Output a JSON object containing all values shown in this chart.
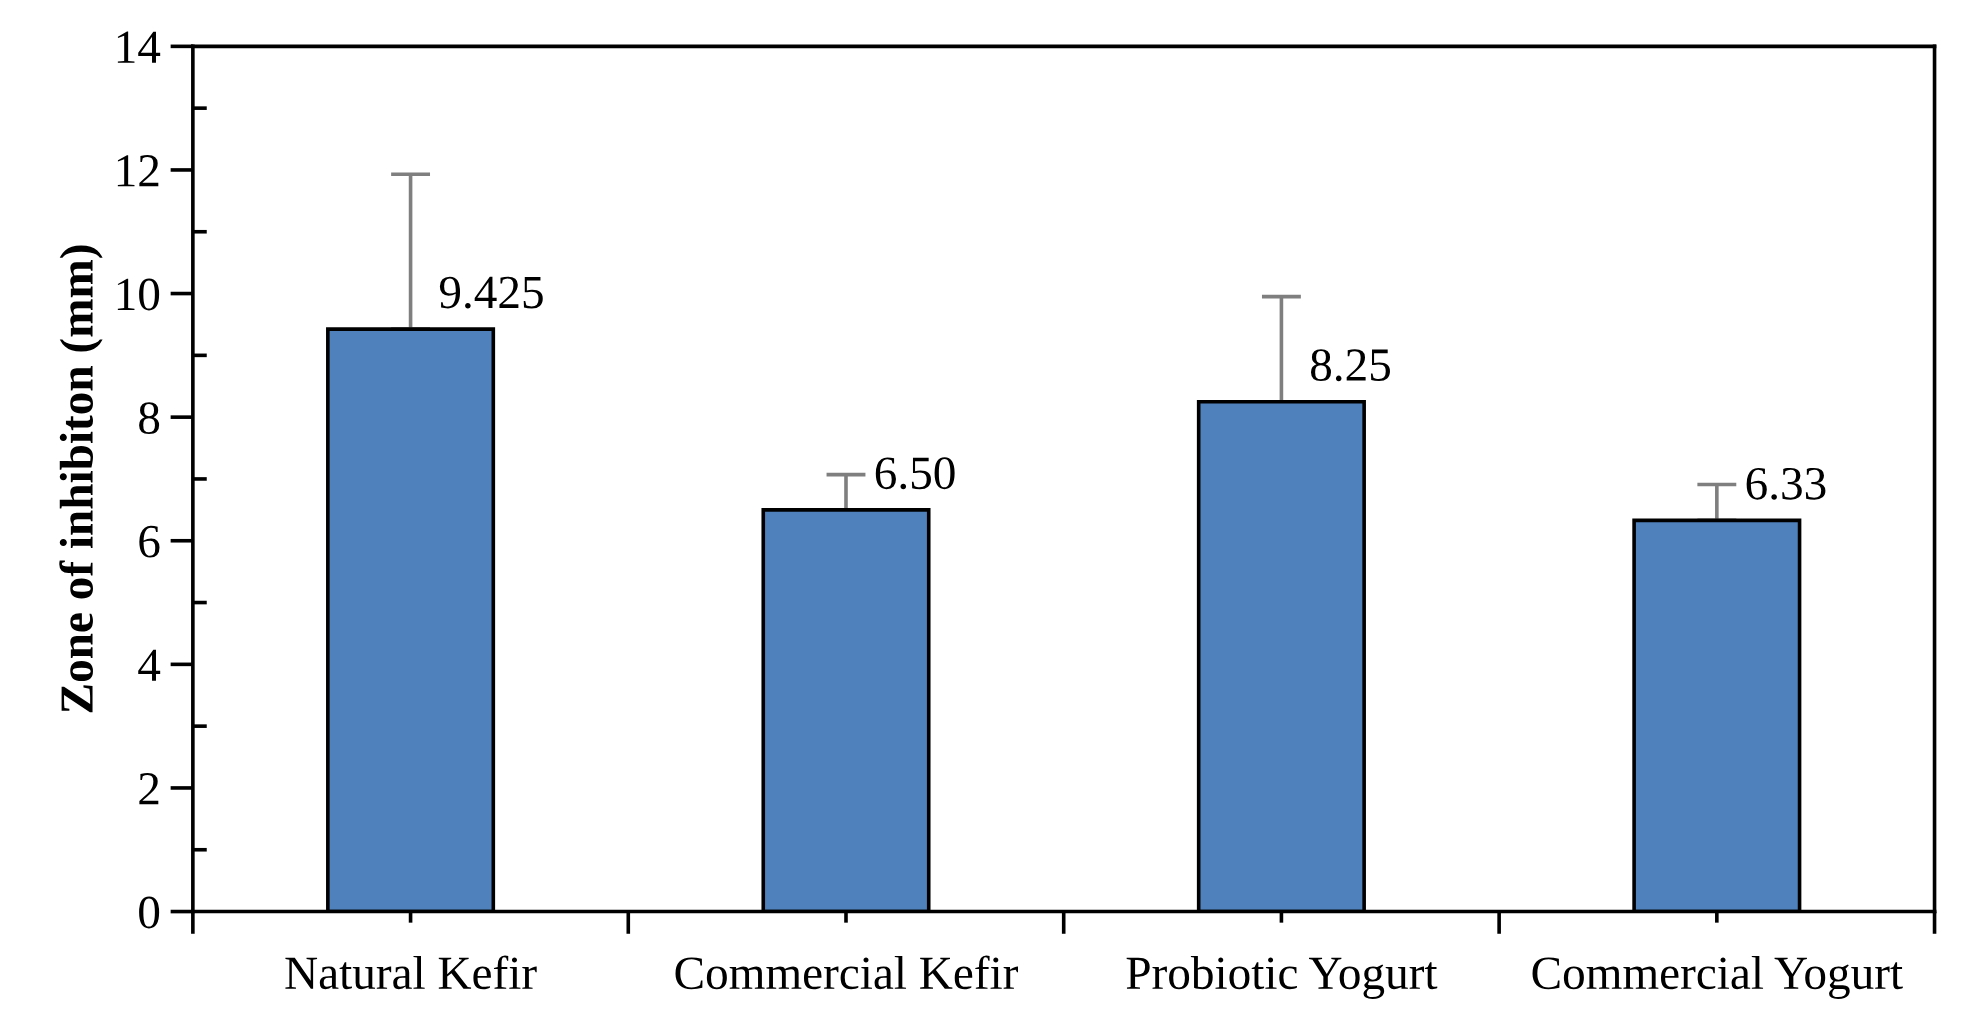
{
  "chart_data": {
    "type": "bar",
    "ylabel": "Zone of inhibiton (mm)",
    "categories": [
      "Natural Kefir",
      "Commercial Kefir",
      "Probiotic Yogurt",
      "Commercial Yogurt"
    ],
    "values": [
      9.425,
      6.5,
      8.25,
      6.33
    ],
    "value_labels": [
      "9.425",
      "6.50",
      "8.25",
      "6.33"
    ],
    "errors": [
      [
        9.425,
        11.93
      ],
      [
        6.5,
        7.07
      ],
      [
        8.25,
        9.95
      ],
      [
        6.33,
        6.91
      ]
    ],
    "color": "#4f81bd",
    "ylim": [
      0,
      14
    ],
    "yticks": [
      0,
      2,
      4,
      6,
      8,
      10,
      12,
      14
    ],
    "grid": false
  }
}
